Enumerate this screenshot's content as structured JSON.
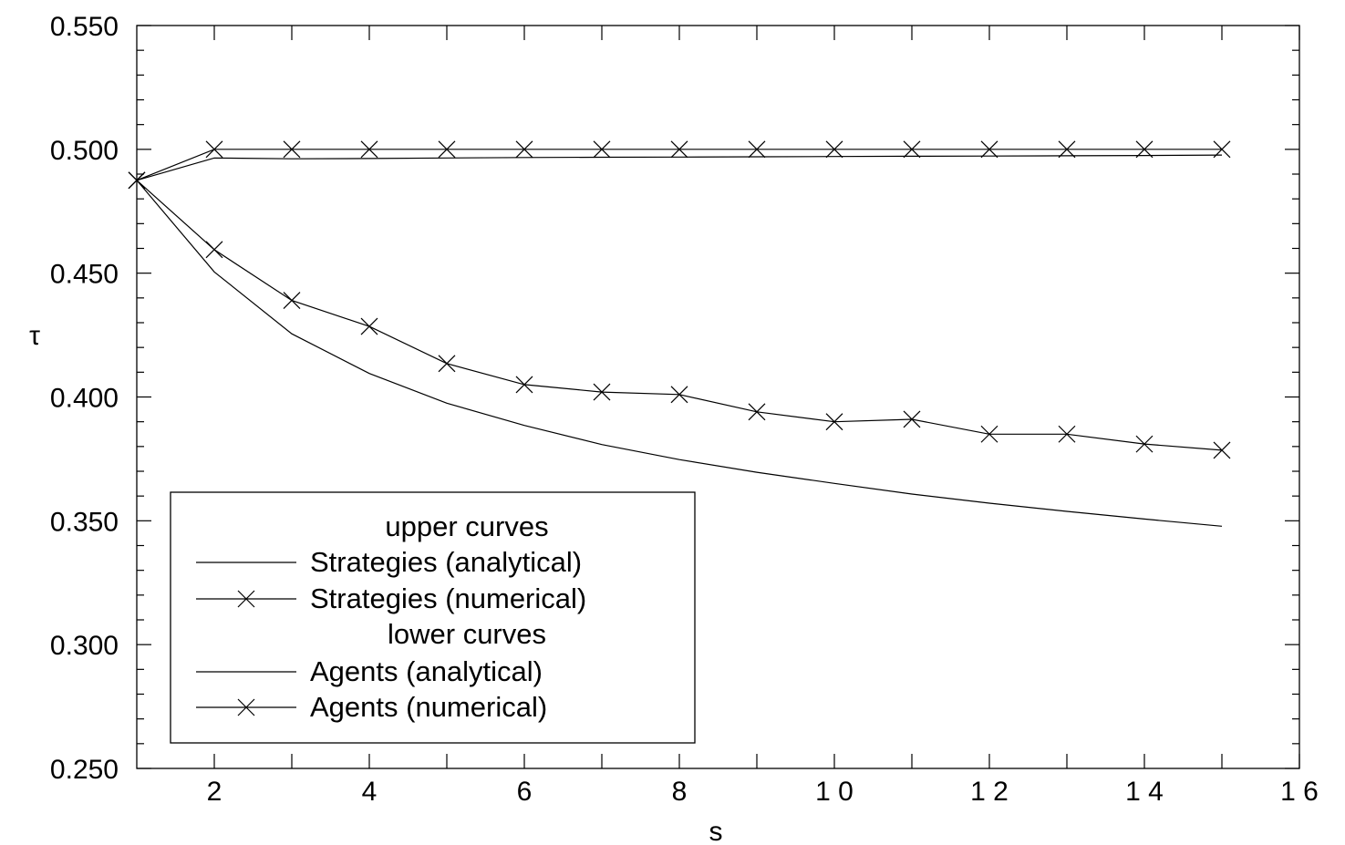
{
  "chart_data": {
    "type": "line",
    "xlabel": "s",
    "ylabel": "τ",
    "xlim": [
      1,
      16
    ],
    "ylim": [
      0.25,
      0.55
    ],
    "x_ticks": [
      2,
      4,
      6,
      8,
      10,
      12,
      14,
      16
    ],
    "x_tick_labels": [
      "2",
      "4",
      "6",
      "8",
      "1 0",
      "1 2",
      "1 4",
      "1 6"
    ],
    "y_ticks": [
      0.25,
      0.3,
      0.35,
      0.4,
      0.45,
      0.5,
      0.55
    ],
    "y_tick_labels": [
      "0.250",
      "0.300",
      "0.350",
      "0.400",
      "0.450",
      "0.500",
      "0.550"
    ],
    "grid": false,
    "legend": {
      "placement": "lower-left",
      "groups": [
        {
          "heading": "upper curves",
          "entries": [
            {
              "label": "Strategies (analytical)",
              "marker": "none"
            },
            {
              "label": "Strategies (numerical)",
              "marker": "x"
            }
          ]
        },
        {
          "heading": "lower curves",
          "entries": [
            {
              "label": "Agents (analytical)",
              "marker": "none"
            },
            {
              "label": "Agents (numerical)",
              "marker": "x"
            }
          ]
        }
      ]
    },
    "x": [
      1,
      2,
      3,
      4,
      5,
      6,
      7,
      8,
      9,
      10,
      11,
      12,
      13,
      14,
      15
    ],
    "series": [
      {
        "name": "Strategies (analytical)",
        "marker": "none",
        "values": [
          0.4875,
          0.4965,
          0.4962,
          0.4963,
          0.4965,
          0.4967,
          0.4968,
          0.4969,
          0.497,
          0.4971,
          0.4972,
          0.4973,
          0.4974,
          0.4975,
          0.4977
        ]
      },
      {
        "name": "Strategies (numerical)",
        "marker": "x",
        "values": [
          0.4875,
          0.5,
          0.5,
          0.5,
          0.5,
          0.5,
          0.5,
          0.5,
          0.5,
          0.5,
          0.5,
          0.5,
          0.5,
          0.5,
          0.5
        ]
      },
      {
        "name": "Agents (analytical)",
        "marker": "none",
        "values": [
          0.4875,
          0.4505,
          0.4255,
          0.4095,
          0.3975,
          0.3885,
          0.3808,
          0.3747,
          0.3696,
          0.3651,
          0.3608,
          0.3571,
          0.3538,
          0.3507,
          0.3478
        ]
      },
      {
        "name": "Agents (numerical)",
        "marker": "x",
        "values": [
          0.4875,
          0.4595,
          0.439,
          0.4285,
          0.4135,
          0.405,
          0.402,
          0.401,
          0.394,
          0.39,
          0.391,
          0.385,
          0.385,
          0.381,
          0.3785
        ]
      }
    ]
  }
}
